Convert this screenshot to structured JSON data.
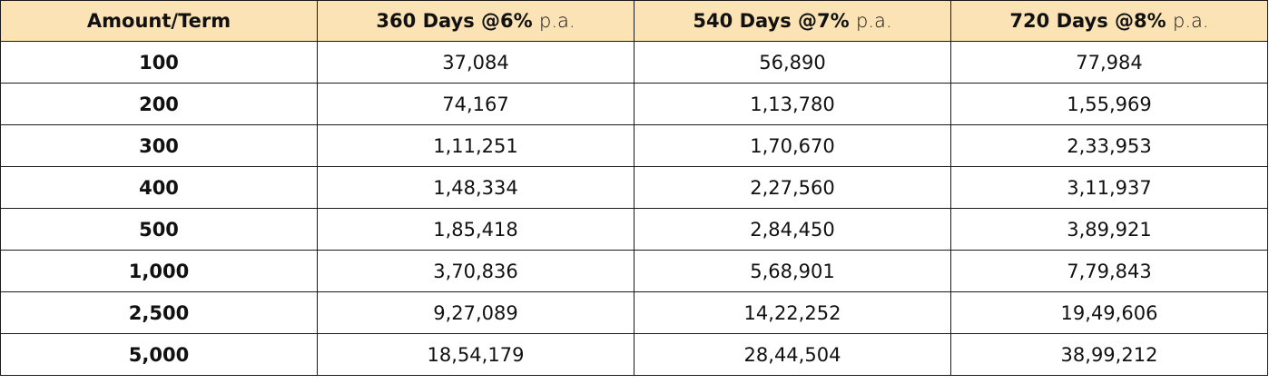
{
  "table": {
    "header": [
      "Amount/Term",
      {
        "bold": "360 Days @6%",
        "light": "p.a."
      },
      {
        "bold": "540 Days @7%",
        "light": "p.a."
      },
      {
        "bold": "720 Days @8%",
        "light": "p.a."
      }
    ],
    "rows": [
      [
        "100",
        "37,084",
        "56,890",
        "77,984"
      ],
      [
        "200",
        "74,167",
        "1,13,780",
        "1,55,969"
      ],
      [
        "300",
        "1,11,251",
        "1,70,670",
        "2,33,953"
      ],
      [
        "400",
        "1,48,334",
        "2,27,560",
        "3,11,937"
      ],
      [
        "500",
        "1,85,418",
        "2,84,450",
        "3,89,921"
      ],
      [
        "1,000",
        "3,70,836",
        "5,68,901",
        "7,79,843"
      ],
      [
        "2,500",
        "9,27,089",
        "14,22,252",
        "19,49,606"
      ],
      [
        "5,000",
        "18,54,179",
        "28,44,504",
        "38,99,212"
      ]
    ]
  }
}
